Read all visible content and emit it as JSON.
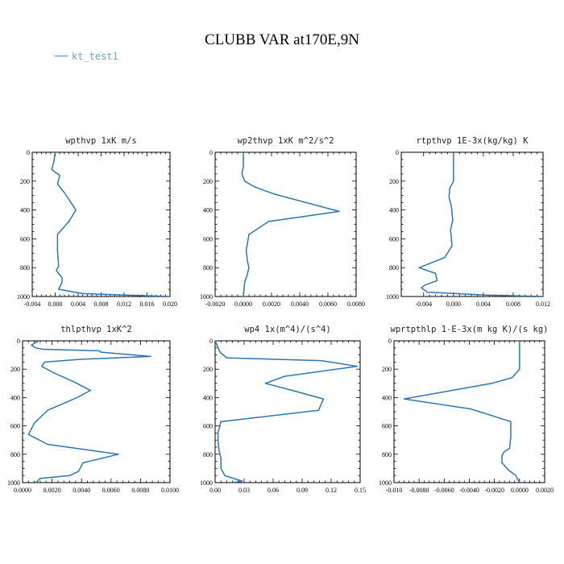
{
  "figure": {
    "title": "CLUBB VAR at170E,9N",
    "legend": [
      {
        "label": "kt_test1",
        "color": "#2a77b3"
      }
    ]
  },
  "chart_data": [
    {
      "type": "line",
      "title": "wpthvp   1xK m/s",
      "xlim": [
        -0.004,
        0.02
      ],
      "ylim": [
        1000,
        0
      ],
      "xticks": [
        -0.004,
        0.0,
        0.004,
        0.008,
        0.012,
        0.016,
        0.02
      ],
      "xtick_labels": [
        "-0.004",
        "0.000",
        "0.004",
        "0.008",
        "0.012",
        "0.016",
        "0.020"
      ],
      "yticks": [
        0,
        200,
        400,
        600,
        800,
        1000
      ],
      "ytick_labels": [
        "0",
        "200",
        "400",
        "600",
        "800",
        "1000"
      ],
      "series": [
        {
          "color": "#2a77b3",
          "x": [
            0.0,
            -0.0002,
            -0.0006,
            0.0008,
            0.0004,
            0.0016,
            0.0036,
            0.0024,
            0.0004,
            0.0004,
            0.0006,
            0.0002,
            0.0012,
            0.0012,
            0.0006,
            0.0048,
            0.02
          ],
          "y": [
            0,
            60,
            120,
            160,
            220,
            280,
            400,
            480,
            570,
            680,
            790,
            820,
            870,
            900,
            950,
            980,
            1000
          ]
        }
      ]
    },
    {
      "type": "line",
      "title": "wp2thvp   1xK m^2/s^2",
      "xlim": [
        -0.002,
        0.008
      ],
      "ylim": [
        1000,
        0
      ],
      "xticks": [
        -0.002,
        0.0,
        0.002,
        0.004,
        0.006,
        0.008
      ],
      "xtick_labels": [
        "-0.0020",
        "0.0000",
        "0.0020",
        "0.0040",
        "0.0060",
        "0.0080"
      ],
      "yticks": [
        0,
        200,
        400,
        600,
        800,
        1000
      ],
      "ytick_labels": [
        "0",
        "200",
        "400",
        "600",
        "800",
        "1000"
      ],
      "series": [
        {
          "color": "#2a77b3",
          "x": [
            0.0,
            0.0,
            -0.0001,
            0.0001,
            0.0008,
            0.0022,
            0.0068,
            0.0018,
            0.0004,
            0.0002,
            0.0003,
            0.0004,
            0.0003,
            0.0001,
            0.0
          ],
          "y": [
            0,
            100,
            150,
            200,
            240,
            290,
            410,
            480,
            570,
            680,
            760,
            800,
            840,
            900,
            1000
          ]
        }
      ]
    },
    {
      "type": "line",
      "title": "rtpthvp   1E-3x(kg/kg) K",
      "xlim": [
        -0.007,
        0.012
      ],
      "ylim": [
        1000,
        0
      ],
      "xticks": [
        -0.004,
        0.0,
        0.004,
        0.008,
        0.012
      ],
      "xtick_labels": [
        "-0.004",
        "0.000",
        "0.004",
        "0.008",
        "0.012"
      ],
      "yticks": [
        0,
        200,
        400,
        600,
        800,
        1000
      ],
      "ytick_labels": [
        "0",
        "200",
        "400",
        "600",
        "800",
        "1000"
      ],
      "series": [
        {
          "color": "#2a77b3",
          "x": [
            0.0,
            0.0,
            -0.0005,
            -0.0006,
            -0.0003,
            -0.0001,
            -0.0004,
            -0.0003,
            -0.0002,
            -0.0012,
            -0.0046,
            -0.0024,
            -0.0022,
            -0.0038,
            -0.0043,
            -0.0035,
            0.0045,
            0.012
          ],
          "y": [
            0,
            200,
            250,
            310,
            370,
            470,
            540,
            590,
            650,
            730,
            800,
            840,
            890,
            920,
            940,
            970,
            990,
            1000
          ]
        }
      ]
    },
    {
      "type": "line",
      "title": "thlpthvp   1xK^2",
      "xlim": [
        0.0,
        0.01
      ],
      "ylim": [
        1000,
        0
      ],
      "xticks": [
        0.0,
        0.002,
        0.004,
        0.006,
        0.008,
        0.01
      ],
      "xtick_labels": [
        "0.0000",
        "0.0020",
        "0.0040",
        "0.0060",
        "0.0080",
        "0.0100"
      ],
      "yticks": [
        0,
        200,
        400,
        600,
        800,
        1000
      ],
      "ytick_labels": [
        "0",
        "200",
        "400",
        "600",
        "800",
        "1000"
      ],
      "series": [
        {
          "color": "#2a77b3",
          "x": [
            0.0011,
            0.0006,
            0.0009,
            0.0014,
            0.0052,
            0.0053,
            0.0087,
            0.004,
            0.0015,
            0.0013,
            0.0022,
            0.0035,
            0.0046,
            0.0037,
            0.0017,
            0.0008,
            0.0004,
            0.0017,
            0.0065,
            0.0041,
            0.0038,
            0.0032,
            0.0012,
            0.0009
          ],
          "y": [
            0,
            30,
            50,
            60,
            70,
            80,
            110,
            130,
            150,
            180,
            230,
            290,
            350,
            400,
            490,
            580,
            660,
            730,
            800,
            860,
            920,
            950,
            970,
            1000
          ]
        }
      ]
    },
    {
      "type": "line",
      "title": "wp4   1x(m^4)/(s^4)",
      "xlim": [
        0.0,
        0.15
      ],
      "ylim": [
        1000,
        0
      ],
      "xticks": [
        0.0,
        0.03,
        0.06,
        0.09,
        0.12,
        0.15
      ],
      "xtick_labels": [
        "0.00",
        "0.03",
        "0.06",
        "0.09",
        "0.12",
        "0.15"
      ],
      "yticks": [
        0,
        200,
        400,
        600,
        800,
        1000
      ],
      "ytick_labels": [
        "0",
        "200",
        "400",
        "600",
        "800",
        "1000"
      ],
      "series": [
        {
          "color": "#2a77b3",
          "x": [
            0.0,
            0.005,
            0.012,
            0.11,
            0.147,
            0.072,
            0.052,
            0.08,
            0.112,
            0.107,
            0.006,
            0.003,
            0.003,
            0.004,
            0.006,
            0.006,
            0.01,
            0.028,
            0.018
          ],
          "y": [
            0,
            80,
            120,
            140,
            180,
            250,
            300,
            350,
            410,
            490,
            570,
            650,
            710,
            770,
            830,
            900,
            950,
            990,
            1000
          ]
        }
      ]
    },
    {
      "type": "line",
      "title": "wprtpthlp   1-E-3x(m kg K)/(s kg)",
      "xlim": [
        -0.01,
        0.002
      ],
      "ylim": [
        1000,
        0
      ],
      "xticks": [
        -0.01,
        -0.008,
        -0.006,
        -0.004,
        -0.002,
        0.0,
        0.002
      ],
      "xtick_labels": [
        "-0.010",
        "-0.0080",
        "-0.0060",
        "-0.0040",
        "-0.0020",
        "0.0000",
        "0.0020"
      ],
      "yticks": [
        0,
        200,
        400,
        600,
        800,
        1000
      ],
      "ytick_labels": [
        "0",
        "200",
        "400",
        "600",
        "800",
        "1000"
      ],
      "series": [
        {
          "color": "#2a77b3",
          "x": [
            0.0,
            0.0,
            -0.0002,
            -0.0006,
            -0.0022,
            -0.0092,
            -0.0039,
            -0.0007,
            -0.0007,
            -0.0008,
            -0.0012,
            -0.0014,
            -0.0014,
            -0.0009,
            -0.0003,
            0.0
          ],
          "y": [
            0,
            200,
            220,
            260,
            300,
            410,
            480,
            570,
            680,
            760,
            780,
            810,
            860,
            910,
            950,
            1000
          ]
        }
      ]
    }
  ]
}
